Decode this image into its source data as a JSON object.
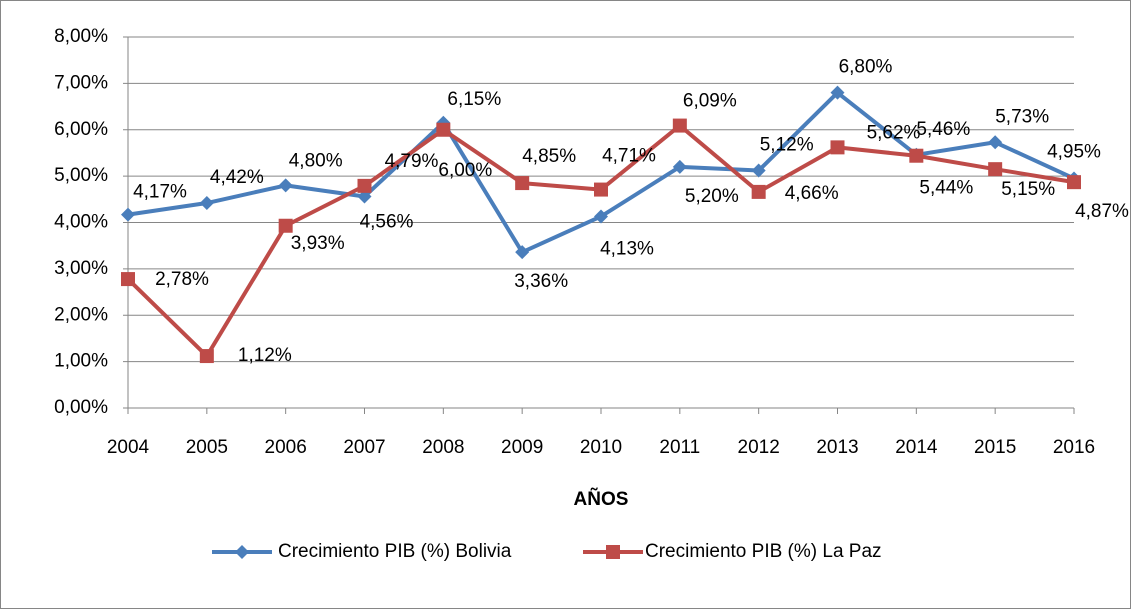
{
  "chart_data": {
    "type": "line",
    "x_label": "AÑOS",
    "categories": [
      "2004",
      "2005",
      "2006",
      "2007",
      "2008",
      "2009",
      "2010",
      "2011",
      "2012",
      "2013",
      "2014",
      "2015",
      "2016"
    ],
    "series": [
      {
        "name": "Crecimiento PIB (%) Bolivia",
        "color": "#4a7ebb",
        "marker": "diamond",
        "values": [
          4.17,
          4.42,
          4.8,
          4.56,
          6.15,
          3.36,
          4.13,
          5.2,
          5.12,
          6.8,
          5.46,
          5.73,
          4.95
        ],
        "value_labels": [
          "4,17%",
          "4,42%",
          "4,80%",
          "4,56%",
          "6,15%",
          "3,36%",
          "4,13%",
          "5,20%",
          "5,12%",
          "6,80%",
          "5,46%",
          "5,73%",
          "4,95%"
        ]
      },
      {
        "name": "Crecimiento PIB (%) La Paz",
        "color": "#be4b48",
        "marker": "square",
        "values": [
          2.78,
          1.12,
          3.93,
          4.79,
          6.0,
          4.85,
          4.71,
          6.09,
          4.66,
          5.62,
          5.44,
          5.15,
          4.87
        ],
        "value_labels": [
          "2,78%",
          "1,12%",
          "3,93%",
          "4,79%",
          "6,00%",
          "4,85%",
          "4,71%",
          "6,09%",
          "4,66%",
          "5,62%",
          "5,44%",
          "5,15%",
          "4,87%"
        ]
      }
    ],
    "ylim": [
      0,
      8
    ],
    "yticks": [
      {
        "value": 0,
        "label": "0,00%"
      },
      {
        "value": 1,
        "label": "1,00%"
      },
      {
        "value": 2,
        "label": "2,00%"
      },
      {
        "value": 3,
        "label": "3,00%"
      },
      {
        "value": 4,
        "label": "4,00%"
      },
      {
        "value": 5,
        "label": "5,00%"
      },
      {
        "value": 6,
        "label": "6,00%"
      },
      {
        "value": 7,
        "label": "7,00%"
      },
      {
        "value": 8,
        "label": "8,00%"
      }
    ],
    "grid": true,
    "legend": "bottom"
  }
}
